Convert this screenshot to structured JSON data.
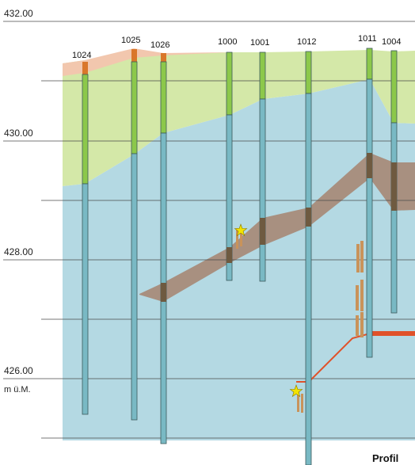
{
  "elevation_labels": [
    "432.00",
    "430.00",
    "428.00",
    "426.00"
  ],
  "unit_label": "m ü.M.",
  "caption_fragment": "Profil",
  "boreholes": [
    {
      "id": "1024",
      "label": "1024"
    },
    {
      "id": "1025",
      "label": "1025"
    },
    {
      "id": "1026",
      "label": "1026"
    },
    {
      "id": "1000",
      "label": "1000"
    },
    {
      "id": "1001",
      "label": "1001"
    },
    {
      "id": "1012",
      "label": "1012"
    },
    {
      "id": "1011",
      "label": "1011"
    },
    {
      "id": "1004",
      "label": "1004"
    }
  ],
  "colors": {
    "background": "#ffffff",
    "grid_line": "#4a4a4a",
    "topsoil": "#f2c7ae",
    "upper_layer": "#d4e8a8",
    "lower_layer": "#b4d9e3",
    "peat_band": "#a89080",
    "peat_band_dark": "#6e5a40",
    "borehole_upper": "#8cc84a",
    "borehole_lower": "#79b9c4",
    "borehole_outline": "#3c5a5c",
    "borehole_top": "#d9772b",
    "water_line": "#e0522a",
    "find_marker": "#f2e300",
    "find_post": "#c9935a"
  }
}
